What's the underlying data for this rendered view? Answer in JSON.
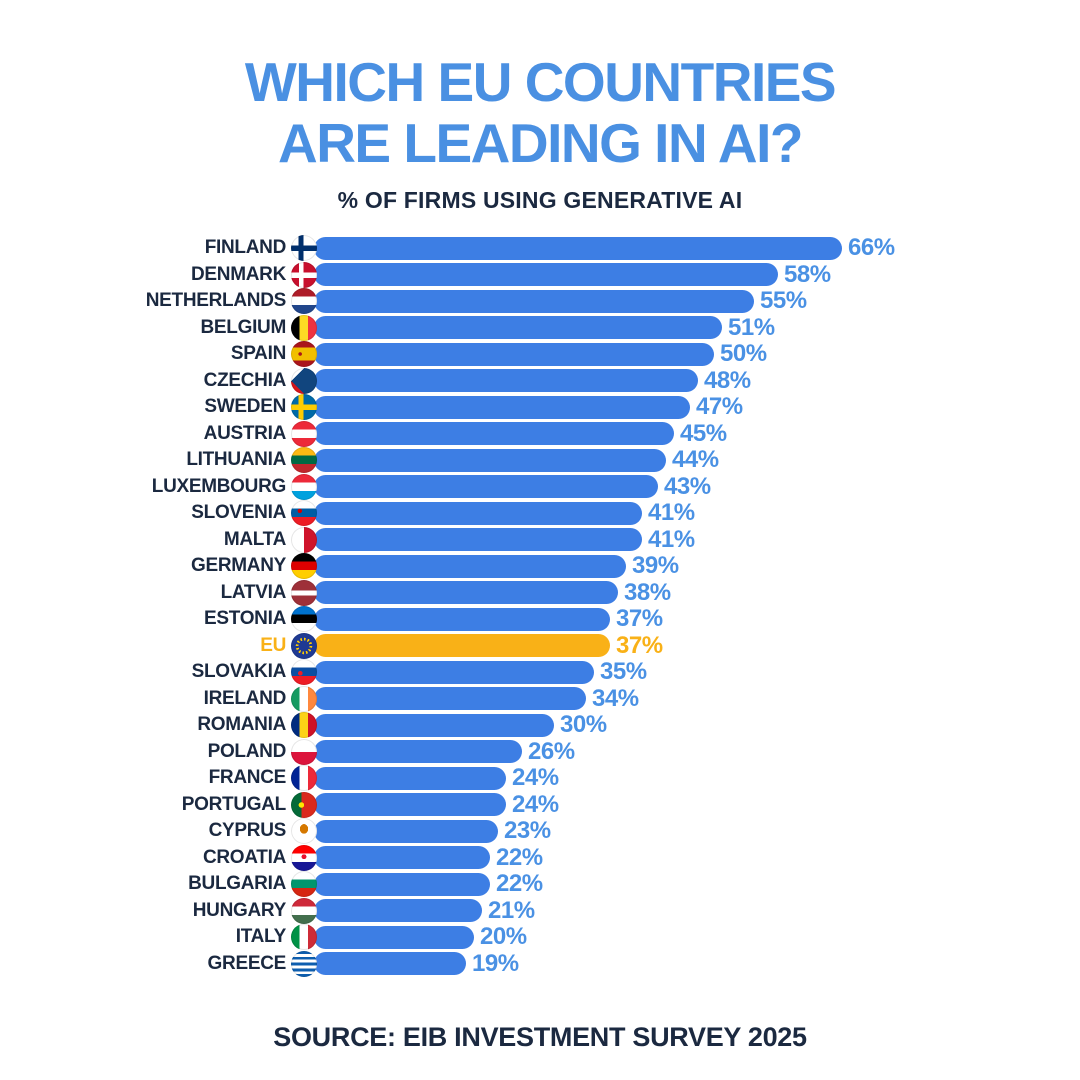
{
  "title": {
    "line1": "WHICH EU COUNTRIES",
    "line2": "ARE LEADING IN AI?"
  },
  "subtitle": "% OF FIRMS USING GENERATIVE AI",
  "source": "SOURCE: EIB INVESTMENT SURVEY 2025",
  "colors": {
    "title_blue": "#4a90e2",
    "value_blue": "#4a91e4",
    "bar_blue": "#3d7ee4",
    "eu_gold": "#f9b117",
    "navy": "#1b2940",
    "background": "#ffffff"
  },
  "chart_data": {
    "type": "bar",
    "orientation": "horizontal",
    "title": "WHICH EU COUNTRIES ARE LEADING IN AI?",
    "subtitle": "% OF FIRMS USING GENERATIVE AI",
    "source": "SOURCE: EIB INVESTMENT SURVEY 2025",
    "unit": "%",
    "xlim": [
      0,
      66
    ],
    "grid": false,
    "legend": "none",
    "highlight_category": "EU",
    "categories": [
      "FINLAND",
      "DENMARK",
      "NETHERLANDS",
      "BELGIUM",
      "SPAIN",
      "CZECHIA",
      "SWEDEN",
      "AUSTRIA",
      "LITHUANIA",
      "LUXEMBOURG",
      "SLOVENIA",
      "MALTA",
      "GERMANY",
      "LATVIA",
      "ESTONIA",
      "EU",
      "SLOVAKIA",
      "IRELAND",
      "ROMANIA",
      "POLAND",
      "FRANCE",
      "PORTUGAL",
      "CYPRUS",
      "CROATIA",
      "BULGARIA",
      "HUNGARY",
      "ITALY",
      "GREECE"
    ],
    "values": [
      66,
      58,
      55,
      51,
      50,
      48,
      47,
      45,
      44,
      43,
      41,
      41,
      39,
      38,
      37,
      37,
      35,
      34,
      30,
      26,
      24,
      24,
      23,
      22,
      22,
      21,
      20,
      19
    ],
    "rows": [
      {
        "label": "FINLAND",
        "value": 66,
        "display": "66%",
        "highlight": false,
        "flag": "finland-flag-icon",
        "flag_css": "linear-gradient(to bottom, transparent 40%, #002f6c 40%, #002f6c 62%, transparent 62%), linear-gradient(to right, transparent 28%, #002f6c 28%, #002f6c 48%, transparent 48%), #ffffff"
      },
      {
        "label": "DENMARK",
        "value": 58,
        "display": "58%",
        "highlight": false,
        "flag": "denmark-flag-icon",
        "flag_css": "linear-gradient(to bottom, transparent 40%, #ffffff 40%, #ffffff 62%, transparent 62%), linear-gradient(to right, transparent 30%, #ffffff 30%, #ffffff 48%, transparent 48%), #c8102e"
      },
      {
        "label": "NETHERLANDS",
        "value": 55,
        "display": "55%",
        "highlight": false,
        "flag": "netherlands-flag-icon",
        "flag_css": "linear-gradient(to bottom, #ae1c28 0%, #ae1c28 33%, #ffffff 33%, #ffffff 66%, #21468b 66%)"
      },
      {
        "label": "BELGIUM",
        "value": 51,
        "display": "51%",
        "highlight": false,
        "flag": "belgium-flag-icon",
        "flag_css": "linear-gradient(to right, #000000 0%, #000000 33%, #fdda24 33%, #fdda24 66%, #ef3340 66%)"
      },
      {
        "label": "SPAIN",
        "value": 50,
        "display": "50%",
        "highlight": false,
        "flag": "spain-flag-icon",
        "flag_css": "radial-gradient(circle at 35% 50%, #aa151b 0%, #aa151b 8%, transparent 9%), linear-gradient(to bottom, #aa151b 0%, #aa151b 25%, #f1bf00 25%, #f1bf00 75%, #aa151b 75%)"
      },
      {
        "label": "CZECHIA",
        "value": 48,
        "display": "48%",
        "highlight": false,
        "flag": "czechia-flag-icon",
        "flag_css": "conic-gradient(from 45deg at 0% 50%, #11457e 0deg, #11457e 90deg, transparent 90deg), linear-gradient(to bottom, #ffffff 0%, #ffffff 50%, #d7141a 50%)"
      },
      {
        "label": "SWEDEN",
        "value": 47,
        "display": "47%",
        "highlight": false,
        "flag": "sweden-flag-icon",
        "flag_css": "linear-gradient(to bottom, transparent 40%, #fecc02 40%, #fecc02 62%, transparent 62%), linear-gradient(to right, transparent 28%, #fecc02 28%, #fecc02 48%, transparent 48%), #006aa7"
      },
      {
        "label": "AUSTRIA",
        "value": 45,
        "display": "45%",
        "highlight": false,
        "flag": "austria-flag-icon",
        "flag_css": "linear-gradient(to bottom, #ed2939 0%, #ed2939 33%, #ffffff 33%, #ffffff 66%, #ed2939 66%)"
      },
      {
        "label": "LITHUANIA",
        "value": 44,
        "display": "44%",
        "highlight": false,
        "flag": "lithuania-flag-icon",
        "flag_css": "linear-gradient(to bottom, #fdb913 0%, #fdb913 33%, #006a44 33%, #006a44 66%, #c1272d 66%)"
      },
      {
        "label": "LUXEMBOURG",
        "value": 43,
        "display": "43%",
        "highlight": false,
        "flag": "luxembourg-flag-icon",
        "flag_css": "linear-gradient(to bottom, #ed2939 0%, #ed2939 33%, #ffffff 33%, #ffffff 66%, #00a1de 66%)"
      },
      {
        "label": "SLOVENIA",
        "value": 41,
        "display": "41%",
        "highlight": false,
        "flag": "slovenia-flag-icon",
        "flag_css": "radial-gradient(circle at 34% 42%, #d50000 0%, #d50000 9%, transparent 10%), linear-gradient(to bottom, #ffffff 0%, #ffffff 33%, #005da4 33%, #005da4 66%, #ed1c24 66%)"
      },
      {
        "label": "MALTA",
        "value": 41,
        "display": "41%",
        "highlight": false,
        "flag": "malta-flag-icon",
        "flag_css": "linear-gradient(to right, #ffffff 0%, #ffffff 50%, #cf142b 50%)"
      },
      {
        "label": "GERMANY",
        "value": 39,
        "display": "39%",
        "highlight": false,
        "flag": "germany-flag-icon",
        "flag_css": "linear-gradient(to bottom, #000000 0%, #000000 33%, #dd0000 33%, #dd0000 66%, #ffce00 66%)"
      },
      {
        "label": "LATVIA",
        "value": 38,
        "display": "38%",
        "highlight": false,
        "flag": "latvia-flag-icon",
        "flag_css": "linear-gradient(to bottom, #9e3039 0%, #9e3039 40%, #ffffff 40%, #ffffff 60%, #9e3039 60%)"
      },
      {
        "label": "ESTONIA",
        "value": 37,
        "display": "37%",
        "highlight": false,
        "flag": "estonia-flag-icon",
        "flag_css": "linear-gradient(to bottom, #0072ce 0%, #0072ce 33%, #000000 33%, #000000 66%, #ffffff 66%)"
      },
      {
        "label": "EU",
        "value": 37,
        "display": "37%",
        "highlight": true,
        "flag": "eu-flag-icon",
        "flag_css": "radial-gradient(circle, #1f3a93 0%, #1f3a93 30%, transparent 30%, transparent 45%, #1f3a93 45%), repeating-conic-gradient(#ffcc00 0deg 13deg, #1f3a93 13deg 30deg)"
      },
      {
        "label": "SLOVAKIA",
        "value": 35,
        "display": "35%",
        "highlight": false,
        "flag": "slovakia-flag-icon",
        "flag_css": "radial-gradient(circle at 36% 55%, #ee1c25 0%, #ee1c25 10%, transparent 11%), linear-gradient(to bottom, #ffffff 0%, #ffffff 33%, #0b4ea2 33%, #0b4ea2 66%, #ee1c25 66%)"
      },
      {
        "label": "IRELAND",
        "value": 34,
        "display": "34%",
        "highlight": false,
        "flag": "ireland-flag-icon",
        "flag_css": "linear-gradient(to right, #169b62 0%, #169b62 33%, #ffffff 33%, #ffffff 66%, #ff883e 66%)"
      },
      {
        "label": "ROMANIA",
        "value": 30,
        "display": "30%",
        "highlight": false,
        "flag": "romania-flag-icon",
        "flag_css": "linear-gradient(to right, #002b7f 0%, #002b7f 33%, #fcd116 33%, #fcd116 66%, #ce1126 66%)"
      },
      {
        "label": "POLAND",
        "value": 26,
        "display": "26%",
        "highlight": false,
        "flag": "poland-flag-icon",
        "flag_css": "linear-gradient(to bottom, #ffffff 0%, #ffffff 50%, #dc143c 50%)"
      },
      {
        "label": "FRANCE",
        "value": 24,
        "display": "24%",
        "highlight": false,
        "flag": "france-flag-icon",
        "flag_css": "linear-gradient(to right, #002395 0%, #002395 33%, #ffffff 33%, #ffffff 66%, #ed2939 66%)"
      },
      {
        "label": "PORTUGAL",
        "value": 24,
        "display": "24%",
        "highlight": false,
        "flag": "portugal-flag-icon",
        "flag_css": "radial-gradient(circle at 40% 50%, #ffe900 0%, #ffe900 13%, transparent 14%), linear-gradient(to right, #046a38 0%, #046a38 40%, #da291c 40%)"
      },
      {
        "label": "CYPRUS",
        "value": 23,
        "display": "23%",
        "highlight": false,
        "flag": "cyprus-flag-icon",
        "flag_css": "radial-gradient(ellipse at 50% 42%, #d57800 0%, #d57800 22%, transparent 23%), #ffffff"
      },
      {
        "label": "CROATIA",
        "value": 22,
        "display": "22%",
        "highlight": false,
        "flag": "croatia-flag-icon",
        "flag_css": "radial-gradient(circle at 50% 45%, #e8112d 0%, #e8112d 12%, transparent 13%), linear-gradient(to bottom, #ff0000 0%, #ff0000 33%, #ffffff 33%, #ffffff 66%, #171796 66%)"
      },
      {
        "label": "BULGARIA",
        "value": 22,
        "display": "22%",
        "highlight": false,
        "flag": "bulgaria-flag-icon",
        "flag_css": "linear-gradient(to bottom, #ffffff 0%, #ffffff 33%, #00966e 33%, #00966e 66%, #d62612 66%)"
      },
      {
        "label": "HUNGARY",
        "value": 21,
        "display": "21%",
        "highlight": false,
        "flag": "hungary-flag-icon",
        "flag_css": "linear-gradient(to bottom, #ce2939 0%, #ce2939 33%, #ffffff 33%, #ffffff 66%, #436f4d 66%)"
      },
      {
        "label": "ITALY",
        "value": 20,
        "display": "20%",
        "highlight": false,
        "flag": "italy-flag-icon",
        "flag_css": "linear-gradient(to right, #009246 0%, #009246 33%, #ffffff 33%, #ffffff 66%, #ce2b37 66%)"
      },
      {
        "label": "GREECE",
        "value": 19,
        "display": "19%",
        "highlight": false,
        "flag": "greece-flag-icon",
        "flag_css": "repeating-linear-gradient(to bottom, #0d5eaf 0px, #0d5eaf 2.9px, #ffffff 2.9px, #ffffff 5.8px)"
      }
    ]
  }
}
